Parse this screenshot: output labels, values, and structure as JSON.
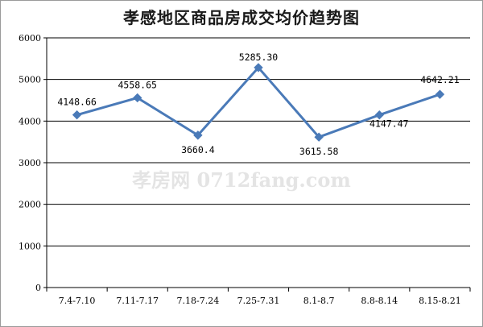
{
  "chart_data": {
    "type": "line",
    "title": "孝感地区商品房成交均价趋势图",
    "categories": [
      "7.4-7.10",
      "7.11-7.17",
      "7.18-7.24",
      "7.25-7.31",
      "8.1-8.7",
      "8.8-8.14",
      "8.15-8.21"
    ],
    "values": [
      4148.66,
      4558.65,
      3660.4,
      5285.3,
      3615.58,
      4147.47,
      4642.21
    ],
    "data_labels": [
      "4148.66",
      "4558.65",
      "3660.4",
      "5285.30",
      "3615.58",
      "4147.47",
      "4642.21"
    ],
    "ylim": [
      0,
      6000
    ],
    "yticks": [
      "0",
      "1000",
      "2000",
      "3000",
      "4000",
      "5000",
      "6000"
    ],
    "grid": true,
    "legend": "none",
    "line_color": "#4a7ab8",
    "watermark": "孝房网 0712fang.com"
  }
}
